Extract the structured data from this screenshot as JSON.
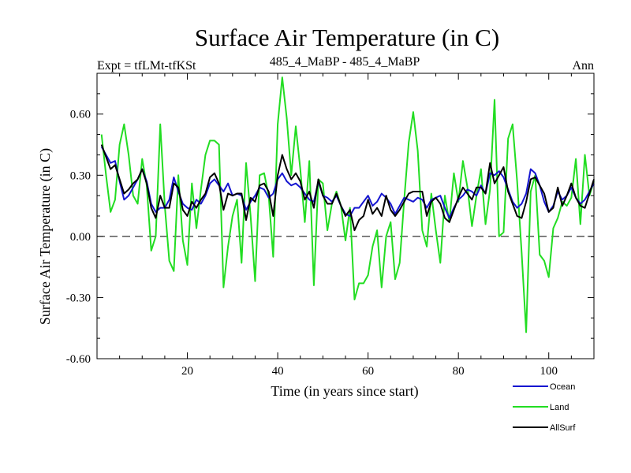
{
  "chart_data": {
    "type": "line",
    "title": "Surface Air Temperature (in C)",
    "subtitle_left": "Expt = tfLMt-tfKSt",
    "subtitle_center": "485_4_MaBP - 485_4_MaBP",
    "subtitle_right": "Ann",
    "xlabel": "Time (in years since start)",
    "ylabel": "Surface Air Temperature (in C)",
    "xlim": [
      0,
      110
    ],
    "ylim": [
      -0.6,
      0.8
    ],
    "xticks_major": [
      20,
      40,
      60,
      80,
      100
    ],
    "xtick_labels": [
      "20",
      "40",
      "60",
      "80",
      "100"
    ],
    "yticks_major": [
      -0.6,
      -0.3,
      0.0,
      0.3,
      0.6
    ],
    "ytick_labels": [
      "-0.60",
      "-0.30",
      "0.00",
      "0.30",
      "0.60"
    ],
    "zero_line": "dashed",
    "x": [
      1,
      2,
      3,
      4,
      5,
      6,
      7,
      8,
      9,
      10,
      11,
      12,
      13,
      14,
      15,
      16,
      17,
      18,
      19,
      20,
      21,
      22,
      23,
      24,
      25,
      26,
      27,
      28,
      29,
      30,
      31,
      32,
      33,
      34,
      35,
      36,
      37,
      38,
      39,
      40,
      41,
      42,
      43,
      44,
      45,
      46,
      47,
      48,
      49,
      50,
      51,
      52,
      53,
      54,
      55,
      56,
      57,
      58,
      59,
      60,
      61,
      62,
      63,
      64,
      65,
      66,
      67,
      68,
      69,
      70,
      71,
      72,
      73,
      74,
      75,
      76,
      77,
      78,
      79,
      80,
      81,
      82,
      83,
      84,
      85,
      86,
      87,
      88,
      89,
      90,
      91,
      92,
      93,
      94,
      95,
      96,
      97,
      98,
      99,
      100,
      101,
      102,
      103,
      104,
      105,
      106,
      107,
      108,
      109,
      110
    ],
    "series": [
      {
        "name": "Ocean",
        "color": "#1515d0",
        "values": [
          0.44,
          0.4,
          0.36,
          0.37,
          0.27,
          0.18,
          0.2,
          0.24,
          0.28,
          0.33,
          0.27,
          0.16,
          0.12,
          0.14,
          0.14,
          0.18,
          0.29,
          0.22,
          0.16,
          0.14,
          0.13,
          0.18,
          0.16,
          0.2,
          0.26,
          0.28,
          0.25,
          0.22,
          0.26,
          0.2,
          0.21,
          0.2,
          0.13,
          0.17,
          0.2,
          0.24,
          0.23,
          0.19,
          0.21,
          0.28,
          0.31,
          0.27,
          0.25,
          0.26,
          0.24,
          0.21,
          0.18,
          0.17,
          0.27,
          0.2,
          0.19,
          0.17,
          0.2,
          0.15,
          0.11,
          0.1,
          0.14,
          0.14,
          0.17,
          0.2,
          0.15,
          0.17,
          0.21,
          0.19,
          0.16,
          0.11,
          0.15,
          0.19,
          0.18,
          0.17,
          0.19,
          0.18,
          0.14,
          0.18,
          0.19,
          0.2,
          0.14,
          0.09,
          0.14,
          0.18,
          0.2,
          0.23,
          0.22,
          0.2,
          0.25,
          0.21,
          0.31,
          0.3,
          0.32,
          0.29,
          0.23,
          0.17,
          0.14,
          0.16,
          0.21,
          0.33,
          0.31,
          0.25,
          0.17,
          0.12,
          0.15,
          0.22,
          0.18,
          0.2,
          0.24,
          0.19,
          0.16,
          0.18,
          0.22,
          0.26
        ]
      },
      {
        "name": "Land",
        "color": "#22dd22",
        "values": [
          0.5,
          0.3,
          0.12,
          0.18,
          0.45,
          0.55,
          0.4,
          0.2,
          0.16,
          0.38,
          0.25,
          -0.07,
          0.0,
          0.55,
          0.15,
          -0.12,
          -0.17,
          0.3,
          -0.02,
          -0.14,
          0.26,
          0.04,
          0.23,
          0.4,
          0.47,
          0.47,
          0.45,
          -0.25,
          -0.05,
          0.1,
          0.18,
          -0.13,
          0.36,
          0.1,
          -0.22,
          0.3,
          0.31,
          0.2,
          -0.1,
          0.55,
          0.78,
          0.58,
          0.3,
          0.54,
          0.33,
          0.07,
          0.37,
          -0.24,
          0.28,
          0.26,
          0.03,
          0.16,
          0.22,
          0.15,
          -0.02,
          0.14,
          -0.31,
          -0.23,
          -0.23,
          -0.19,
          -0.05,
          0.03,
          -0.25,
          0.0,
          0.07,
          -0.21,
          -0.13,
          0.18,
          0.46,
          0.61,
          0.42,
          0.03,
          -0.05,
          0.21,
          0.03,
          -0.13,
          0.2,
          0.07,
          0.31,
          0.17,
          0.37,
          0.24,
          0.05,
          0.2,
          0.33,
          0.06,
          0.23,
          0.67,
          0.0,
          0.02,
          0.48,
          0.55,
          0.27,
          -0.08,
          -0.47,
          0.22,
          0.3,
          -0.09,
          -0.12,
          -0.2,
          0.04,
          0.09,
          0.17,
          0.15,
          0.19,
          0.38,
          0.06,
          0.4,
          0.2,
          0.27
        ]
      },
      {
        "name": "AllSurf",
        "color": "#000000",
        "values": [
          0.45,
          0.39,
          0.33,
          0.35,
          0.28,
          0.21,
          0.23,
          0.26,
          0.28,
          0.33,
          0.26,
          0.14,
          0.09,
          0.2,
          0.14,
          0.14,
          0.26,
          0.24,
          0.13,
          0.1,
          0.17,
          0.14,
          0.18,
          0.21,
          0.29,
          0.31,
          0.26,
          0.13,
          0.21,
          0.2,
          0.21,
          0.21,
          0.08,
          0.19,
          0.17,
          0.25,
          0.26,
          0.22,
          0.1,
          0.3,
          0.4,
          0.33,
          0.28,
          0.31,
          0.27,
          0.18,
          0.22,
          0.14,
          0.28,
          0.2,
          0.16,
          0.16,
          0.21,
          0.15,
          0.1,
          0.13,
          0.03,
          0.08,
          0.1,
          0.18,
          0.11,
          0.14,
          0.1,
          0.2,
          0.13,
          0.1,
          0.13,
          0.17,
          0.21,
          0.22,
          0.22,
          0.22,
          0.1,
          0.17,
          0.19,
          0.16,
          0.09,
          0.07,
          0.13,
          0.19,
          0.24,
          0.21,
          0.18,
          0.24,
          0.24,
          0.21,
          0.36,
          0.26,
          0.3,
          0.34,
          0.22,
          0.16,
          0.1,
          0.09,
          0.17,
          0.28,
          0.29,
          0.25,
          0.21,
          0.12,
          0.14,
          0.24,
          0.15,
          0.2,
          0.26,
          0.19,
          0.15,
          0.14,
          0.21,
          0.28
        ]
      }
    ],
    "legend": {
      "position": "bottom-right",
      "entries": [
        "Ocean",
        "Land",
        "AllSurf"
      ]
    }
  }
}
